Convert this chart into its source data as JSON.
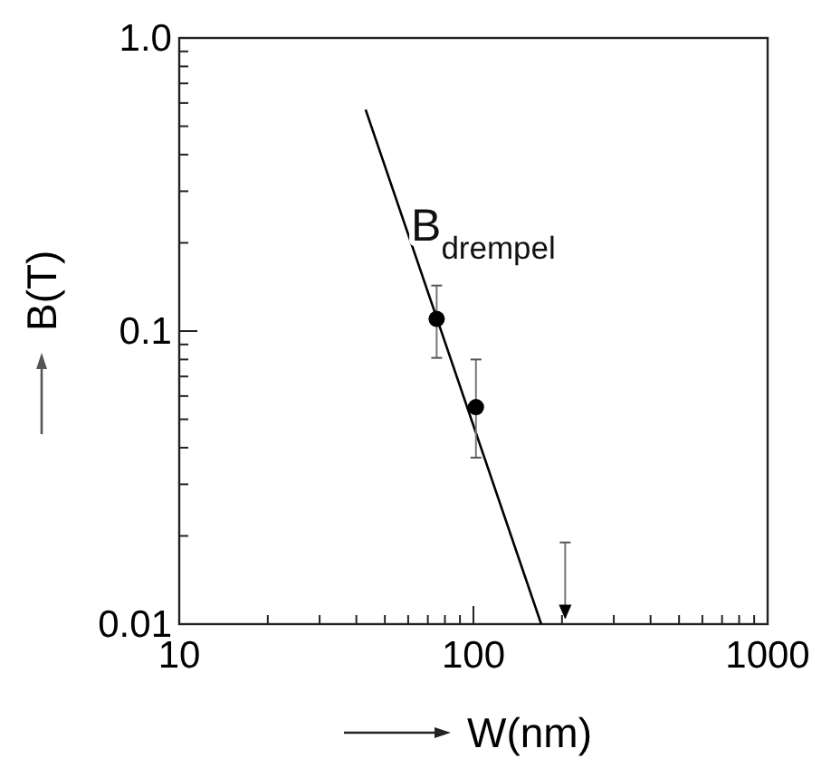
{
  "chart_data": {
    "type": "scatter",
    "xlabel": "W(nm)",
    "ylabel": "B(T)",
    "log": "xy",
    "grid": false,
    "xlim": [
      10,
      1000
    ],
    "ylim": [
      0.01,
      1.0
    ],
    "xticks": [
      10,
      {
        "value": 20,
        "label": null
      },
      {
        "value": 30,
        "label": null
      },
      {
        "value": 40,
        "label": null
      },
      {
        "value": 50,
        "label": null
      },
      {
        "value": 60,
        "label": null
      },
      {
        "value": 70,
        "label": null
      },
      {
        "value": 80,
        "label": null
      },
      {
        "value": 90,
        "label": null
      },
      100,
      {
        "value": 200,
        "label": null
      },
      {
        "value": 300,
        "label": null
      },
      {
        "value": 400,
        "label": null
      },
      {
        "value": 500,
        "label": null
      },
      {
        "value": 600,
        "label": null
      },
      {
        "value": 700,
        "label": null
      },
      {
        "value": 800,
        "label": null
      },
      {
        "value": 900,
        "label": null
      },
      1000
    ],
    "yticks": [
      0.01,
      {
        "value": 0.02,
        "label": null
      },
      {
        "value": 0.03,
        "label": null
      },
      {
        "value": 0.04,
        "label": null
      },
      {
        "value": 0.05,
        "label": null
      },
      {
        "value": 0.06,
        "label": null
      },
      {
        "value": 0.07,
        "label": null
      },
      {
        "value": 0.08,
        "label": null
      },
      {
        "value": 0.09,
        "label": null
      },
      0.1,
      {
        "value": 0.2,
        "label": null
      },
      {
        "value": 0.3,
        "label": null
      },
      {
        "value": 0.4,
        "label": null
      },
      {
        "value": 0.5,
        "label": null
      },
      {
        "value": 0.6,
        "label": null
      },
      {
        "value": 0.7,
        "label": null
      },
      {
        "value": 0.8,
        "label": null
      },
      {
        "value": 0.9,
        "label": null
      },
      {
        "value": 1.0,
        "label": "1.0"
      }
    ],
    "annotations": [
      "B$_{drempel}$"
    ],
    "series": [
      {
        "type": "line",
        "color": "#000000",
        "x": [
          43,
          170
        ],
        "values": [
          0.57,
          0.01
        ],
        "line_style": "solid"
      },
      {
        "color": "#000000",
        "x": [
          75,
          102
        ],
        "values": [
          0.11,
          0.055
        ],
        "errors": [
          [
            0.081,
            0.143
          ],
          [
            0.037,
            0.08
          ]
        ],
        "marker": "circle"
      },
      {
        "color": "#000000",
        "x": [
          205
        ],
        "values": [
          0.011
        ],
        "errors": [
          [
            0.0105,
            0.019
          ]
        ],
        "marker": "triangle"
      }
    ]
  }
}
